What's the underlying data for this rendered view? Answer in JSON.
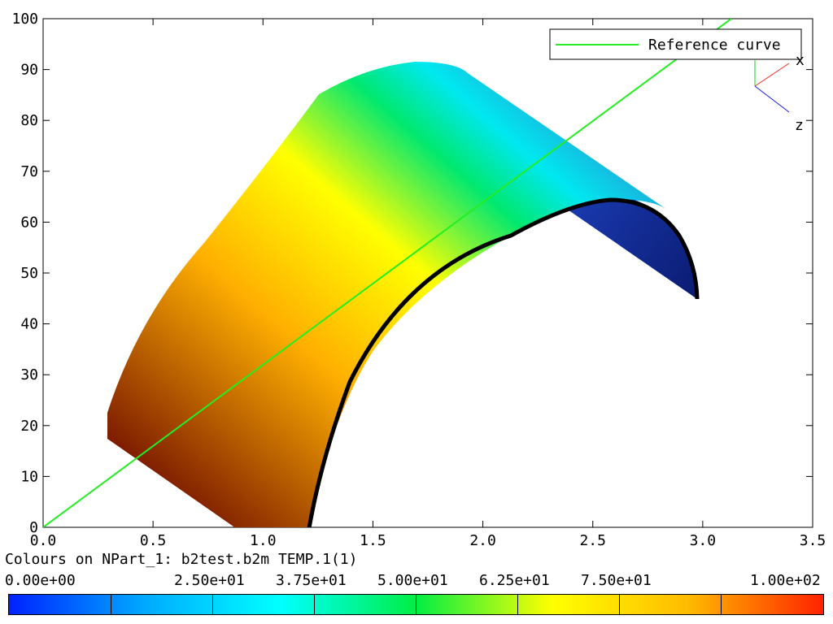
{
  "window": {
    "background": "#ffffff"
  },
  "legend": {
    "entries": [
      {
        "label": "Reference curve",
        "color": "#22ee22"
      }
    ]
  },
  "triad": {
    "x_label": "x",
    "z_label": "z",
    "x_color": "#ff2222",
    "z_color": "#1a1aff"
  },
  "colorbar": {
    "caption": "Colours on NPart_1: b2test.b2m TEMP.1(1)",
    "labels": [
      "0.00e+00",
      "2.50e+01",
      "3.75e+01",
      "5.00e+01",
      "6.25e+01",
      "7.50e+01",
      "1.00e+02"
    ],
    "gradient_stops": [
      "#0022ff",
      "#00aaff",
      "#00ffff",
      "#00ee44",
      "#ffff00",
      "#ffbb00",
      "#ff2200"
    ]
  },
  "chart_data": {
    "type": "line",
    "title": "",
    "xlabel": "",
    "ylabel": "",
    "xlim": [
      0,
      3.5
    ],
    "ylim": [
      0,
      100
    ],
    "x_ticks": [
      "0.0",
      "0.5",
      "1.0",
      "1.5",
      "2.0",
      "2.5",
      "3.0",
      "3.5"
    ],
    "y_ticks": [
      "0",
      "10",
      "20",
      "30",
      "40",
      "50",
      "60",
      "70",
      "80",
      "90",
      "100"
    ],
    "grid": false,
    "legend_position": "top-right",
    "series": [
      {
        "name": "Reference curve",
        "color": "#22ee22",
        "x": [
          0,
          3.13
        ],
        "y": [
          0,
          100
        ]
      }
    ]
  }
}
